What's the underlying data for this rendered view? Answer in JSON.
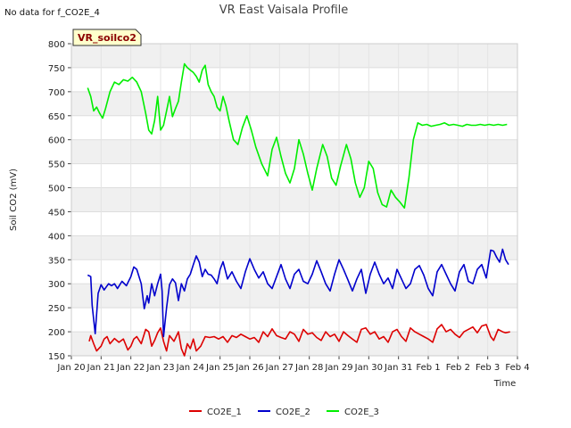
{
  "no_data_note": "No data for f_CO2E_4",
  "badge_label": "VR_soilco2",
  "chart_data": {
    "type": "line",
    "title": "VR East Vaisala Profile",
    "xlabel": "Time",
    "ylabel": "Soil CO2 (mV)",
    "xlim": [
      0,
      15
    ],
    "ylim": [
      150,
      800
    ],
    "yticks": [
      150,
      200,
      250,
      300,
      350,
      400,
      450,
      500,
      550,
      600,
      650,
      700,
      750,
      800
    ],
    "xtick_labels": [
      "Jan 20",
      "Jan 21",
      "Jan 22",
      "Jan 23",
      "Jan 24",
      "Jan 25",
      "Jan 26",
      "Jan 27",
      "Jan 28",
      "Jan 29",
      "Jan 30",
      "Jan 31",
      "Feb 1",
      "Feb 2",
      "Feb 3",
      "Feb 4"
    ],
    "grid": true,
    "legend_position": "bottom",
    "series": [
      {
        "name": "CO2E_1",
        "color": "#dd0000",
        "x": [
          0.6,
          0.65,
          0.75,
          0.85,
          1.0,
          1.1,
          1.2,
          1.3,
          1.45,
          1.6,
          1.75,
          1.9,
          2.0,
          2.1,
          2.2,
          2.35,
          2.5,
          2.6,
          2.7,
          2.8,
          2.9,
          3.0,
          3.1,
          3.2,
          3.3,
          3.45,
          3.6,
          3.7,
          3.8,
          3.9,
          4.0,
          4.1,
          4.2,
          4.35,
          4.5,
          4.65,
          4.8,
          4.95,
          5.1,
          5.25,
          5.4,
          5.55,
          5.7,
          5.85,
          6.0,
          6.15,
          6.3,
          6.45,
          6.6,
          6.75,
          6.9,
          7.05,
          7.2,
          7.35,
          7.5,
          7.65,
          7.8,
          7.95,
          8.1,
          8.25,
          8.4,
          8.55,
          8.7,
          8.85,
          9.0,
          9.15,
          9.3,
          9.45,
          9.6,
          9.75,
          9.9,
          10.05,
          10.2,
          10.35,
          10.5,
          10.65,
          10.8,
          10.95,
          11.1,
          11.25,
          11.4,
          11.55,
          11.7,
          11.85,
          12.0,
          12.15,
          12.3,
          12.45,
          12.6,
          12.75,
          12.9,
          13.05,
          13.2,
          13.35,
          13.5,
          13.65,
          13.8,
          13.95,
          14.1,
          14.2,
          14.35,
          14.5,
          14.6,
          14.75
        ],
        "values": [
          180,
          192,
          175,
          160,
          170,
          185,
          190,
          175,
          186,
          178,
          185,
          162,
          170,
          185,
          190,
          175,
          205,
          200,
          170,
          182,
          198,
          208,
          180,
          160,
          192,
          180,
          200,
          165,
          150,
          175,
          165,
          185,
          160,
          170,
          190,
          188,
          190,
          185,
          190,
          178,
          192,
          188,
          195,
          190,
          185,
          188,
          178,
          200,
          190,
          206,
          192,
          188,
          185,
          200,
          195,
          180,
          205,
          195,
          198,
          188,
          182,
          200,
          190,
          195,
          180,
          200,
          192,
          185,
          178,
          205,
          208,
          195,
          200,
          185,
          190,
          178,
          200,
          205,
          190,
          180,
          208,
          200,
          195,
          190,
          185,
          178,
          206,
          215,
          200,
          205,
          195,
          188,
          200,
          205,
          210,
          198,
          212,
          215,
          190,
          182,
          205,
          200,
          198,
          200
        ]
      },
      {
        "name": "CO2E_2",
        "color": "#0000cc",
        "x": [
          0.55,
          0.65,
          0.7,
          0.8,
          0.9,
          1.0,
          1.1,
          1.25,
          1.35,
          1.45,
          1.55,
          1.7,
          1.85,
          2.0,
          2.1,
          2.2,
          2.35,
          2.45,
          2.55,
          2.6,
          2.7,
          2.8,
          2.9,
          3.0,
          3.05,
          3.1,
          3.2,
          3.3,
          3.4,
          3.5,
          3.6,
          3.7,
          3.8,
          3.9,
          4.0,
          4.1,
          4.2,
          4.3,
          4.4,
          4.5,
          4.6,
          4.7,
          4.8,
          4.9,
          5.0,
          5.1,
          5.25,
          5.4,
          5.55,
          5.7,
          5.85,
          6.0,
          6.15,
          6.3,
          6.45,
          6.6,
          6.75,
          6.9,
          7.05,
          7.2,
          7.35,
          7.5,
          7.65,
          7.8,
          7.95,
          8.1,
          8.25,
          8.4,
          8.55,
          8.7,
          8.85,
          9.0,
          9.15,
          9.3,
          9.45,
          9.6,
          9.75,
          9.9,
          10.05,
          10.2,
          10.35,
          10.5,
          10.65,
          10.8,
          10.95,
          11.1,
          11.25,
          11.4,
          11.55,
          11.7,
          11.85,
          12.0,
          12.15,
          12.3,
          12.45,
          12.6,
          12.75,
          12.9,
          13.05,
          13.2,
          13.35,
          13.5,
          13.65,
          13.8,
          13.95,
          14.1,
          14.2,
          14.3,
          14.4,
          14.5,
          14.6,
          14.7
        ],
        "values": [
          318,
          315,
          255,
          196,
          280,
          298,
          287,
          300,
          296,
          300,
          290,
          305,
          296,
          315,
          335,
          330,
          300,
          248,
          275,
          260,
          300,
          275,
          300,
          320,
          285,
          190,
          250,
          298,
          310,
          302,
          265,
          300,
          285,
          310,
          320,
          340,
          358,
          345,
          315,
          330,
          320,
          318,
          310,
          300,
          330,
          346,
          310,
          325,
          305,
          290,
          325,
          352,
          330,
          312,
          325,
          300,
          290,
          315,
          340,
          310,
          290,
          320,
          330,
          305,
          300,
          320,
          348,
          325,
          300,
          285,
          320,
          350,
          330,
          308,
          285,
          310,
          330,
          280,
          320,
          345,
          320,
          300,
          312,
          290,
          330,
          310,
          290,
          300,
          330,
          338,
          318,
          290,
          275,
          325,
          340,
          320,
          300,
          285,
          325,
          340,
          305,
          300,
          330,
          340,
          312,
          370,
          368,
          355,
          345,
          372,
          350,
          340
        ]
      },
      {
        "name": "CO2E_3",
        "color": "#00ee00",
        "x": [
          0.55,
          0.65,
          0.75,
          0.85,
          0.95,
          1.05,
          1.15,
          1.3,
          1.45,
          1.6,
          1.75,
          1.9,
          2.05,
          2.2,
          2.35,
          2.5,
          2.6,
          2.7,
          2.8,
          2.9,
          3.0,
          3.1,
          3.2,
          3.3,
          3.4,
          3.5,
          3.6,
          3.7,
          3.8,
          3.9,
          4.0,
          4.1,
          4.2,
          4.3,
          4.4,
          4.5,
          4.6,
          4.7,
          4.8,
          4.9,
          5.0,
          5.1,
          5.2,
          5.3,
          5.45,
          5.6,
          5.75,
          5.9,
          6.05,
          6.2,
          6.4,
          6.6,
          6.75,
          6.9,
          7.05,
          7.2,
          7.35,
          7.5,
          7.65,
          7.8,
          7.95,
          8.1,
          8.25,
          8.45,
          8.6,
          8.75,
          8.9,
          9.05,
          9.25,
          9.4,
          9.55,
          9.7,
          9.85,
          10.0,
          10.15,
          10.3,
          10.45,
          10.6,
          10.75,
          10.9,
          11.05,
          11.2,
          11.35,
          11.5,
          11.65,
          11.8,
          11.95,
          12.1,
          12.25,
          12.4,
          12.55,
          12.7,
          12.85,
          13.0,
          13.15,
          13.3,
          13.45,
          13.6,
          13.75,
          13.9,
          14.05,
          14.2,
          14.35,
          14.5,
          14.65
        ],
        "values": [
          708,
          690,
          660,
          668,
          655,
          645,
          665,
          700,
          720,
          715,
          725,
          722,
          730,
          720,
          700,
          655,
          620,
          612,
          640,
          690,
          620,
          630,
          660,
          690,
          648,
          665,
          680,
          720,
          758,
          750,
          745,
          740,
          732,
          720,
          745,
          755,
          715,
          700,
          690,
          668,
          660,
          690,
          670,
          640,
          600,
          590,
          625,
          650,
          620,
          585,
          550,
          525,
          580,
          605,
          565,
          530,
          510,
          540,
          600,
          570,
          530,
          495,
          540,
          590,
          565,
          520,
          505,
          545,
          590,
          560,
          510,
          480,
          500,
          555,
          540,
          490,
          465,
          460,
          495,
          480,
          470,
          458,
          520,
          600,
          635,
          630,
          632,
          628,
          630,
          632,
          635,
          630,
          632,
          630,
          628,
          632,
          630,
          630,
          632,
          630,
          632,
          630,
          632,
          630,
          632
        ]
      }
    ]
  }
}
